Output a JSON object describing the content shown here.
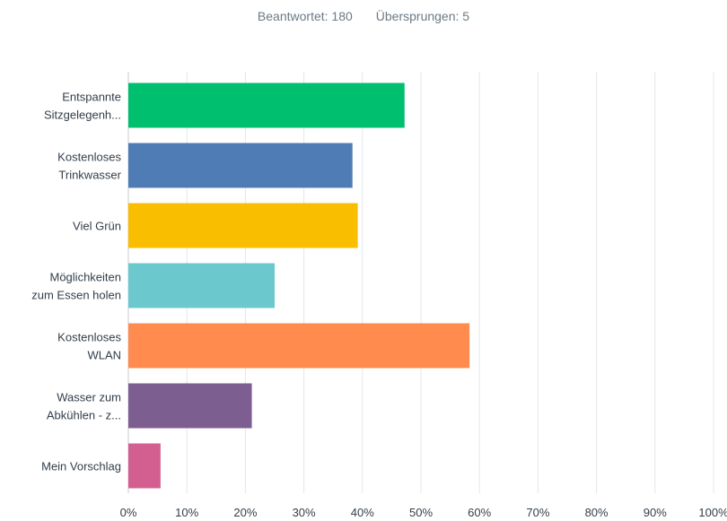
{
  "summary": {
    "answered": "Beantwortet: 180",
    "skipped": "Übersprungen: 5"
  },
  "chart_data": {
    "type": "bar",
    "orientation": "horizontal",
    "categories": [
      [
        "Entspannte",
        "Sitzgelegenh..."
      ],
      [
        "Kostenloses",
        "Trinkwasser"
      ],
      [
        "Viel Grün"
      ],
      [
        "Möglichkeiten",
        "zum Essen holen"
      ],
      [
        "Kostenloses",
        "WLAN"
      ],
      [
        "Wasser zum",
        "Abkühlen - z..."
      ],
      [
        "Mein Vorschlag"
      ]
    ],
    "values": [
      47.2,
      38.3,
      39.2,
      25.0,
      58.3,
      21.1,
      5.5
    ],
    "colors": [
      "#00bf6f",
      "#507cb6",
      "#f9be00",
      "#6bc8cd",
      "#ff8b4f",
      "#7d5e90",
      "#d25f90"
    ],
    "xlim": [
      0,
      100
    ],
    "ticks": [
      "0%",
      "10%",
      "20%",
      "30%",
      "40%",
      "50%",
      "60%",
      "70%",
      "80%",
      "90%",
      "100%"
    ],
    "grid": true
  }
}
